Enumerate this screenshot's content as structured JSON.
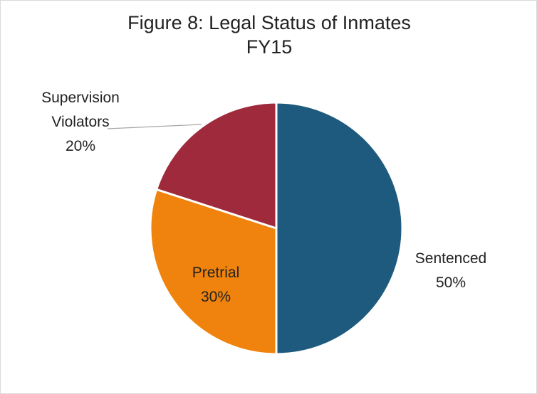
{
  "chart_data": {
    "type": "pie",
    "title": "Figure 8: Legal Status of Inmates FY15",
    "categories": [
      "Sentenced",
      "Pretrial",
      "Supervision Violators"
    ],
    "values": [
      50,
      30,
      20
    ],
    "value_labels": [
      "50%",
      "30%",
      "20%"
    ],
    "colors": [
      "#1d5a7d",
      "#ef830d",
      "#9e2a3b"
    ]
  }
}
